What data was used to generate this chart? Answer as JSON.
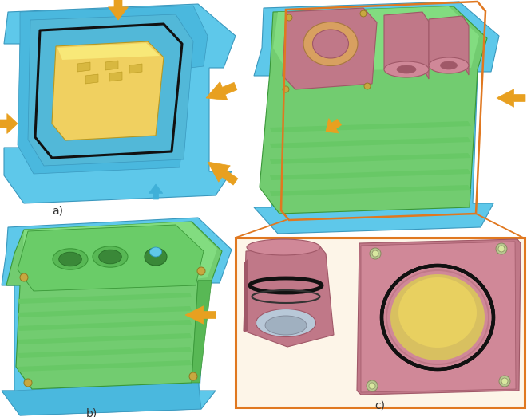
{
  "figure_width": 6.65,
  "figure_height": 5.23,
  "dpi": 100,
  "background_color": "#ffffff",
  "label_a": "a)",
  "label_b": "b)",
  "label_c": "c)",
  "label_fontsize": 10,
  "label_color": "#333333",
  "blue_light": "#5ec8ea",
  "blue_mid": "#4ab8de",
  "blue_dark": "#3a98be",
  "green_light": "#72cc70",
  "green_mid": "#58b855",
  "green_dark": "#3a9838",
  "yellow_light": "#f0d060",
  "yellow_mid": "#d8b840",
  "yellow_dark": "#b89820",
  "pink_light": "#d08898",
  "pink_mid": "#c07888",
  "pink_dark": "#a05868",
  "orange_arrow": "#e8a020",
  "orange_box": "#e07820",
  "blue_arrow": "#40b0d8",
  "black": "#111111",
  "white": "#ffffff",
  "cream": "#fdf5e8"
}
